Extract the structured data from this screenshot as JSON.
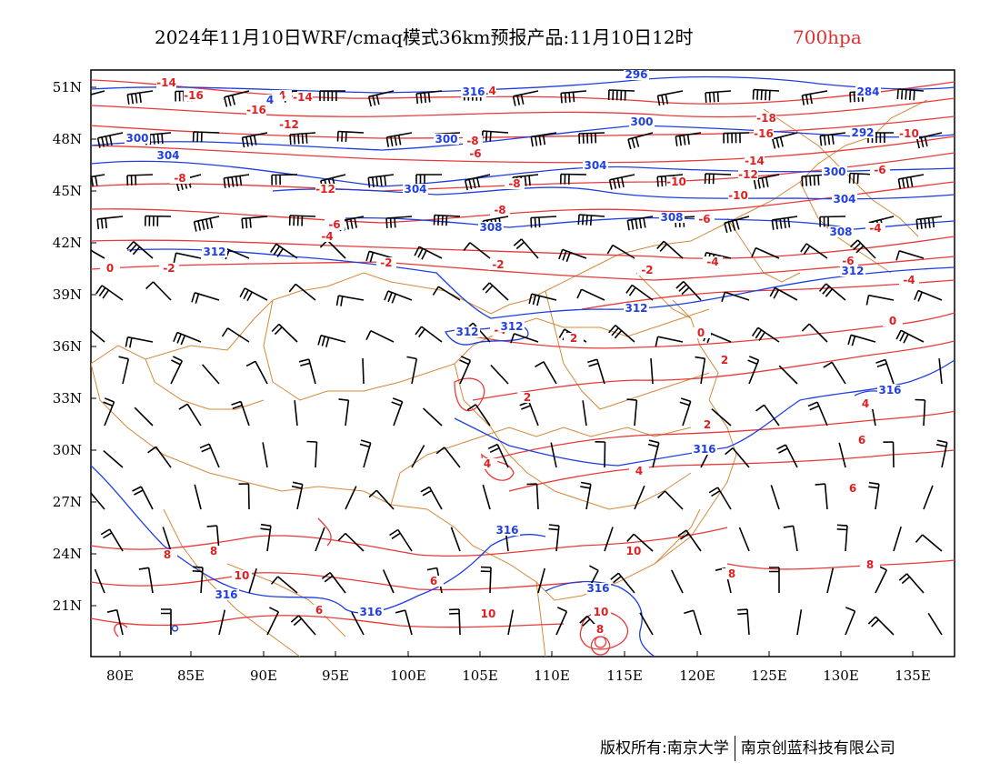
{
  "title": {
    "main": "2024年11月10日WRF/cmaq模式36km预报产品:11月10日12时",
    "level": "700hpa"
  },
  "colors": {
    "temperature": "#e02020",
    "height": "#1f3fe0",
    "boundary": "#d4893a",
    "wind": "#000000"
  },
  "axes": {
    "lat_labels": [
      "51N",
      "48N",
      "45N",
      "42N",
      "39N",
      "36N",
      "33N",
      "30N",
      "27N",
      "24N",
      "21N"
    ],
    "lon_labels": [
      "80E",
      "85E",
      "90E",
      "95E",
      "100E",
      "105E",
      "110E",
      "115E",
      "120E",
      "125E",
      "130E",
      "135E"
    ]
  },
  "temperature_labels": [
    "-14",
    "-16",
    "-16",
    "-14",
    "-12",
    "-14",
    "-18",
    "-12",
    "-16",
    "-10",
    "-14",
    "-12",
    "-8",
    "-10",
    "-8",
    "-6",
    "-8",
    "-10",
    "-6",
    "-6",
    "-8",
    "-6",
    "-4",
    "-4",
    "-4",
    "-6",
    "-4",
    "-2",
    "-2",
    "-2",
    "-2",
    "0",
    "2",
    "2",
    "-4",
    "0",
    "0",
    "2",
    "2",
    "4",
    "4",
    "4",
    "6",
    "6",
    "6",
    "6",
    "8",
    "8",
    "8",
    "8",
    "10",
    "10",
    "10",
    "10",
    "8",
    "4"
  ],
  "height_labels": [
    "296",
    "284",
    "300",
    "300",
    "300",
    "292",
    "304",
    "304",
    "304",
    "300",
    "304",
    "308",
    "308",
    "308",
    "312",
    "312",
    "312",
    "312",
    "312",
    "316",
    "316",
    "316",
    "316",
    "316",
    "316",
    "316",
    "4"
  ],
  "footer": {
    "owner": "版权所有:南京大学",
    "company": "南京创蓝科技有限公司"
  }
}
